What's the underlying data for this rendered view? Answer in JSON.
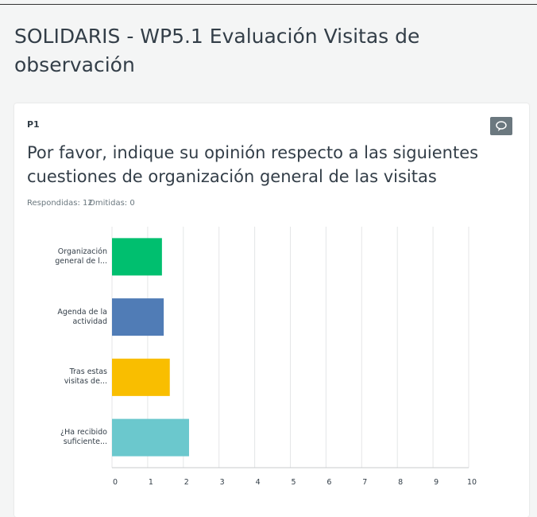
{
  "header": {
    "title": "SOLIDARIS - WP5.1 Evaluación Visitas de observación"
  },
  "question": {
    "number": "P1",
    "text": "Por favor, indique su opinión respecto a las siguientes cuestiones de organización general de las visitas",
    "answered": "Respondidas: 12",
    "skipped": "Omitidas: 0"
  },
  "chart_data": {
    "type": "hbar",
    "categories": [
      "Organización general de l...",
      "Agenda de la actividad",
      "Tras estas visitas de...",
      "¿Ha recibido suficiente..."
    ],
    "values": [
      1.4,
      1.45,
      1.62,
      2.16
    ],
    "colors": [
      "#00bf6f",
      "#507cb6",
      "#f9be00",
      "#6bc8cd"
    ],
    "xlim": [
      0,
      10
    ],
    "xticks": [
      0,
      1,
      2,
      3,
      4,
      5,
      6,
      7,
      8,
      9,
      10
    ],
    "grid": true
  }
}
